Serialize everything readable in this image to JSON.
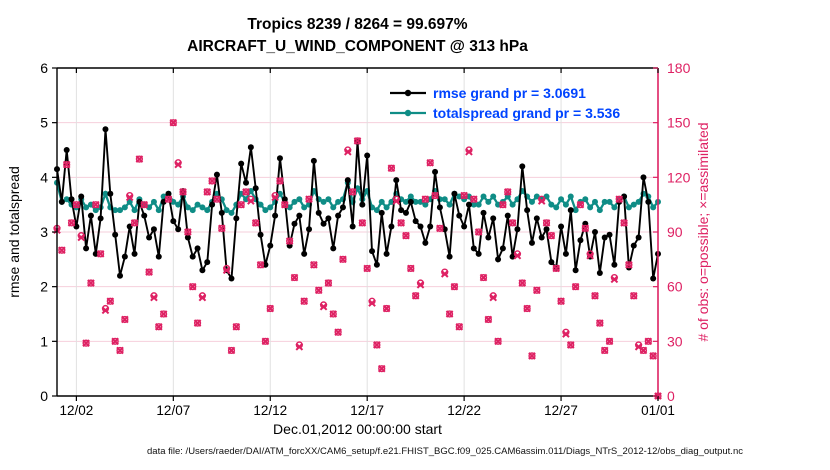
{
  "figure": {
    "title_line1": "Tropics 8239 / 8264 = 99.697%",
    "title_line2": "AIRCRAFT_U_WIND_COMPONENT @ 313 hPa",
    "xlabel": "Dec.01,2012 00:00:00 start",
    "ylabel_left": "rmse and totalspread",
    "ylabel_right": "# of obs: o=possible; ×=assimilated",
    "footer": "data file: /Users/raeder/DAI/ATM_forcXX/CAM6_setup/f.e21.FHIST_BGC.f09_025.CAM6assim.011/Diags_NTrS_2012-12/obs_diag_output.nc"
  },
  "legend": {
    "text_color": "#0044ff",
    "entries": [
      {
        "label": "rmse grand pr = 3.0691",
        "color": "#000000"
      },
      {
        "label": "totalspread grand pr = 3.536",
        "color": "#0f8d86"
      }
    ]
  },
  "colors": {
    "rmse": "#000000",
    "totalspread": "#0f8d86",
    "obs": "#de2163",
    "legend_text": "#0044ff",
    "grid_horizontal": "#f6cfdb",
    "grid_vertical": "#e0e0e0",
    "axis": "#000000",
    "right_axis": "#de2163"
  },
  "chart_data": {
    "type": "line",
    "title": "Tropics 8239 / 8264 = 99.697%",
    "subtitle": "AIRCRAFT_U_WIND_COMPONENT @ 313 hPa",
    "stats": {
      "region": "Tropics",
      "obs_assimilated_total": 8239,
      "obs_possible_total": 8264,
      "pct_assimilated": "99.697%",
      "rmse_grand_pr": 3.0691,
      "totalspread_grand_pr": 3.536
    },
    "x_start_day": 0.0,
    "x_step_days": 0.25,
    "x_axis": {
      "min": 0,
      "max": 31,
      "tick_days": [
        1,
        6,
        11,
        16,
        21,
        26,
        31
      ],
      "tick_labels": [
        "12/02",
        "12/07",
        "12/12",
        "12/17",
        "12/22",
        "12/27",
        "01/01"
      ],
      "label": "Dec.01,2012 00:00:00 start"
    },
    "y_left": {
      "min": 0,
      "max": 6,
      "ticks": [
        0,
        1,
        2,
        3,
        4,
        5,
        6
      ],
      "label": "rmse and totalspread"
    },
    "y_right": {
      "min": 0,
      "max": 180,
      "ticks": [
        0,
        30,
        60,
        90,
        120,
        150,
        180
      ],
      "label": "# of obs: o=possible; ×=assimilated"
    },
    "series": [
      {
        "name": "rmse",
        "axis": "left",
        "color": "#000000",
        "marker": "dot",
        "values": [
          4.15,
          3.55,
          4.5,
          3.6,
          3.1,
          3.65,
          2.7,
          3.3,
          2.6,
          3.25,
          4.88,
          3.7,
          2.95,
          2.2,
          2.55,
          3.1,
          2.6,
          3.55,
          3.3,
          2.9,
          3.05,
          2.55,
          3.55,
          3.7,
          3.2,
          3.05,
          3.75,
          2.9,
          2.55,
          2.7,
          2.3,
          2.45,
          3.5,
          4.05,
          3.35,
          2.3,
          2.15,
          3.25,
          4.25,
          3.9,
          4.55,
          3.8,
          2.95,
          2.4,
          2.75,
          3.3,
          4.35,
          3.6,
          2.75,
          3.15,
          3.3,
          2.6,
          3.05,
          4.3,
          3.35,
          3.15,
          3.25,
          2.7,
          3.3,
          3.45,
          3.95,
          3.1,
          4.65,
          3.5,
          4.4,
          2.65,
          2.4,
          3.35,
          2.6,
          3.1,
          3.95,
          3.4,
          3.35,
          3.55,
          3.2,
          3.1,
          2.8,
          3.1,
          4.1,
          3.45,
          3.05,
          2.55,
          3.7,
          3.3,
          3.1,
          3.5,
          2.7,
          2.6,
          3.35,
          2.9,
          3.25,
          2.5,
          2.7,
          3.3,
          2.55,
          3.05,
          4.2,
          3.4,
          2.8,
          3.25,
          2.9,
          3.05,
          2.45,
          2.35,
          3.1,
          2.6,
          3.4,
          2.3,
          2.85,
          3.15,
          2.55,
          3.0,
          2.25,
          2.9,
          2.95,
          2.4,
          3.55,
          3.65,
          2.35,
          2.75,
          2.9,
          4.0,
          3.55,
          2.15,
          2.6
        ]
      },
      {
        "name": "totalspread",
        "axis": "left",
        "color": "#0f8d86",
        "marker": "dot",
        "values": [
          3.9,
          3.55,
          3.6,
          3.5,
          3.45,
          3.6,
          3.45,
          3.5,
          3.4,
          3.45,
          3.7,
          3.45,
          3.4,
          3.4,
          3.45,
          3.55,
          3.4,
          3.6,
          3.5,
          3.45,
          3.55,
          3.4,
          3.65,
          3.7,
          3.55,
          3.5,
          3.65,
          3.45,
          3.4,
          3.5,
          3.45,
          3.4,
          3.55,
          3.7,
          3.6,
          3.4,
          3.35,
          3.5,
          3.7,
          3.6,
          3.75,
          3.6,
          3.5,
          3.4,
          3.45,
          3.55,
          3.7,
          3.55,
          3.45,
          3.55,
          3.6,
          3.45,
          3.5,
          3.75,
          3.6,
          3.55,
          3.6,
          3.45,
          3.55,
          3.6,
          3.9,
          3.55,
          3.8,
          3.6,
          3.75,
          3.45,
          3.4,
          3.55,
          3.45,
          3.55,
          3.7,
          3.6,
          3.55,
          3.65,
          3.55,
          3.55,
          3.5,
          3.6,
          3.75,
          3.6,
          3.6,
          3.5,
          3.7,
          3.65,
          3.6,
          3.65,
          3.5,
          3.5,
          3.65,
          3.55,
          3.65,
          3.5,
          3.55,
          3.65,
          3.5,
          3.6,
          3.75,
          3.65,
          3.55,
          3.65,
          3.6,
          3.65,
          3.5,
          3.45,
          3.6,
          3.5,
          3.65,
          3.4,
          3.55,
          3.6,
          3.45,
          3.55,
          3.4,
          3.55,
          3.55,
          3.45,
          3.6,
          3.65,
          3.45,
          3.5,
          3.55,
          3.7,
          3.65,
          3.45,
          3.55
        ]
      },
      {
        "name": "obs_possible",
        "axis": "right",
        "color": "#de2163",
        "marker": "o",
        "values": [
          92,
          80,
          127,
          95,
          105,
          88,
          29,
          62,
          105,
          78,
          48,
          52,
          30,
          25,
          42,
          110,
          95,
          130,
          105,
          68,
          55,
          38,
          45,
          108,
          150,
          128,
          112,
          90,
          60,
          40,
          55,
          112,
          118,
          108,
          92,
          70,
          25,
          38,
          105,
          112,
          108,
          95,
          72,
          30,
          48,
          110,
          118,
          105,
          85,
          65,
          28,
          52,
          108,
          72,
          58,
          50,
          62,
          45,
          35,
          75,
          135,
          112,
          140,
          95,
          70,
          52,
          28,
          15,
          48,
          125,
          108,
          95,
          88,
          70,
          55,
          62,
          108,
          128,
          110,
          92,
          68,
          45,
          60,
          38,
          110,
          135,
          108,
          90,
          65,
          42,
          55,
          30,
          105,
          112,
          95,
          78,
          62,
          48,
          22,
          58,
          108,
          95,
          88,
          70,
          52,
          35,
          28,
          60,
          105,
          92,
          78,
          55,
          40,
          25,
          30,
          65,
          108,
          95,
          72,
          55,
          28,
          25,
          30,
          22,
          0
        ]
      },
      {
        "name": "obs_assimilated",
        "axis": "right",
        "color": "#de2163",
        "marker": "x",
        "values": [
          91,
          80,
          127,
          95,
          105,
          87,
          29,
          62,
          105,
          78,
          47,
          52,
          30,
          25,
          42,
          109,
          95,
          130,
          105,
          68,
          54,
          38,
          45,
          108,
          150,
          127,
          112,
          90,
          60,
          40,
          54,
          112,
          118,
          108,
          92,
          69,
          25,
          38,
          105,
          112,
          107,
          95,
          72,
          30,
          48,
          109,
          118,
          105,
          85,
          65,
          27,
          52,
          108,
          72,
          58,
          49,
          62,
          45,
          35,
          75,
          134,
          112,
          140,
          95,
          70,
          51,
          28,
          15,
          48,
          125,
          107,
          95,
          88,
          70,
          55,
          61,
          108,
          128,
          110,
          92,
          67,
          45,
          60,
          38,
          110,
          134,
          108,
          90,
          65,
          42,
          54,
          30,
          105,
          112,
          95,
          77,
          62,
          48,
          22,
          58,
          107,
          95,
          88,
          70,
          52,
          34,
          28,
          60,
          105,
          92,
          77,
          55,
          40,
          25,
          30,
          64,
          108,
          95,
          72,
          55,
          27,
          25,
          30,
          22,
          0
        ]
      }
    ]
  }
}
